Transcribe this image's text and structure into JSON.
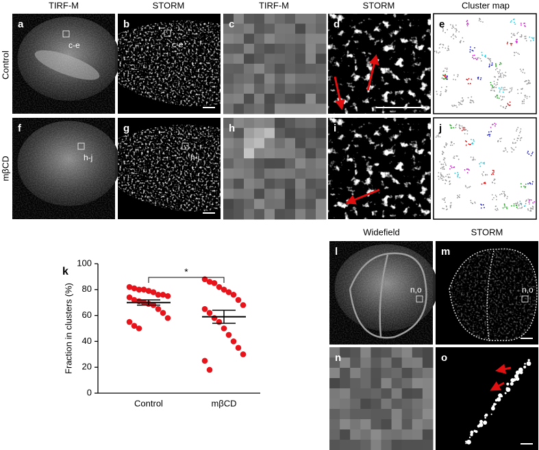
{
  "header": {
    "columns": [
      "TIRF-M",
      "STORM",
      "TIRF-M",
      "STORM",
      "Cluster map"
    ],
    "rows": [
      "Control",
      "mβCD"
    ],
    "lower_columns": [
      "Widefield",
      "STORM"
    ]
  },
  "panels": [
    {
      "letter": "a",
      "inset": "c-e"
    },
    {
      "letter": "b",
      "inset": "c-e"
    },
    {
      "letter": "c"
    },
    {
      "letter": "d"
    },
    {
      "letter": "e"
    },
    {
      "letter": "f",
      "inset": "h-j"
    },
    {
      "letter": "g",
      "inset": "h-j"
    },
    {
      "letter": "h"
    },
    {
      "letter": "i"
    },
    {
      "letter": "j"
    },
    {
      "letter": "l",
      "inset": "n,o"
    },
    {
      "letter": "m",
      "inset": "n,o"
    },
    {
      "letter": "n"
    },
    {
      "letter": "o"
    }
  ],
  "chart_data": {
    "type": "dot",
    "panel_label": "k",
    "ylabel": "Fraction in clusters (%)",
    "categories": [
      "Control",
      "mβCD"
    ],
    "color": "#e8141b",
    "groups": [
      {
        "values": [
          82,
          81,
          80,
          80,
          79,
          78,
          76,
          76,
          75,
          74,
          72,
          71,
          70,
          69,
          68,
          65,
          62,
          58,
          55,
          52,
          50
        ],
        "mean": 70,
        "sem": 2
      },
      {
        "values": [
          88,
          86,
          85,
          82,
          80,
          78,
          76,
          72,
          68,
          65,
          62,
          58,
          55,
          50,
          45,
          40,
          35,
          30,
          25,
          18
        ],
        "mean": 59,
        "sem": 5
      }
    ],
    "significance": "*",
    "ylim": [
      0,
      100
    ],
    "yticks": [
      0,
      20,
      40,
      60,
      80,
      100
    ]
  }
}
